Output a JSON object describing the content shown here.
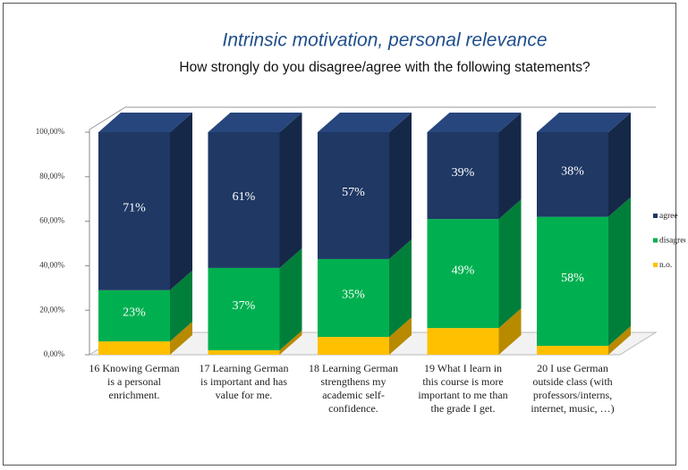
{
  "chart_data": {
    "type": "bar3d_stacked",
    "title": "Intrinsic motivation, personal relevance",
    "subtitle": "How strongly do you disagree/agree with the following statements?",
    "categories": [
      "16 Knowing German is a personal enrichment.",
      "17 Learning German is important and has value for me.",
      "18 Learning German strengthens my academic self-confidence.",
      "19 What I learn in this course is more important to me than the grade I get.",
      "20 I use German outside class (with professors/interns, internet, music, …)"
    ],
    "series": [
      {
        "name": "n.o.",
        "color": "#ffc000",
        "values": [
          6,
          2,
          8,
          12,
          4
        ]
      },
      {
        "name": "disagree",
        "color": "#00b050",
        "values": [
          23,
          37,
          35,
          49,
          58
        ],
        "value_labels": [
          "23%",
          "37%",
          "35%",
          "49%",
          "58%"
        ]
      },
      {
        "name": "agree",
        "color": "#1f3864",
        "values": [
          71,
          61,
          57,
          39,
          38
        ],
        "value_labels": [
          "71%",
          "61%",
          "57%",
          "39%",
          "38%"
        ]
      }
    ],
    "ylim": [
      0,
      100
    ],
    "yticks": [
      {
        "value": 0,
        "label": "0,00%"
      },
      {
        "value": 20,
        "label": "20,00%"
      },
      {
        "value": 40,
        "label": "40,00%"
      },
      {
        "value": 60,
        "label": "60,00%"
      },
      {
        "value": 80,
        "label": "80,00%"
      },
      {
        "value": 100,
        "label": "100,00%"
      }
    ],
    "legend": "right"
  }
}
